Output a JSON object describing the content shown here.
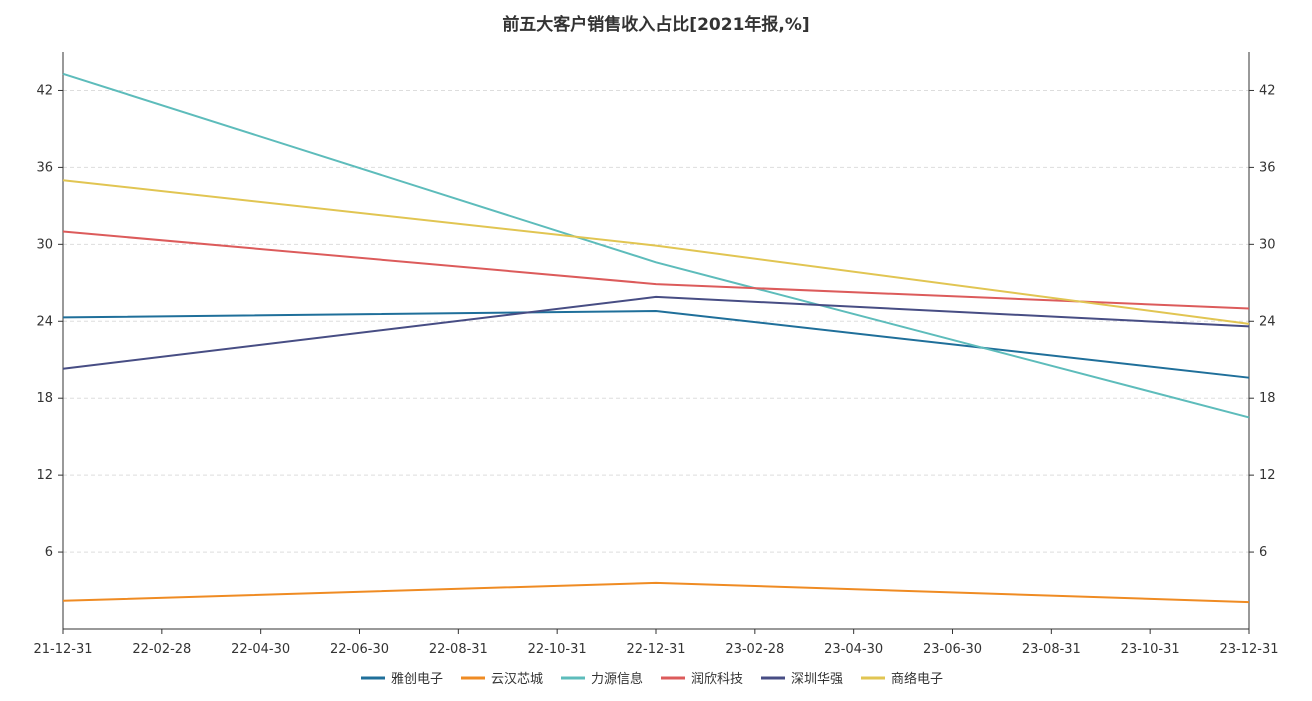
{
  "chart_data": {
    "type": "line",
    "title": "前五大客户销售收入占比[2021年报,%]",
    "x_tick_labels": [
      "21-12-31",
      "22-02-28",
      "22-04-30",
      "22-06-30",
      "22-08-31",
      "22-10-31",
      "22-12-31",
      "23-02-28",
      "23-04-30",
      "23-06-30",
      "23-08-31",
      "23-10-31",
      "23-12-31"
    ],
    "x_range": [
      "2021-12-31",
      "2023-12-31"
    ],
    "x": [
      "2021-12-31",
      "2022-12-31",
      "2023-12-31"
    ],
    "y_ticks": [
      6,
      12,
      18,
      24,
      30,
      36,
      42
    ],
    "ylim": [
      0,
      45
    ],
    "grid": true,
    "legend_position": "bottom",
    "series": [
      {
        "name": "雅创电子",
        "color": "#1f6f9a",
        "values": [
          24.3,
          24.8,
          19.6
        ]
      },
      {
        "name": "云汉芯城",
        "color": "#ef8b23",
        "values": [
          2.2,
          3.6,
          2.1
        ]
      },
      {
        "name": "力源信息",
        "color": "#5dbcbb",
        "values": [
          43.3,
          28.6,
          16.5
        ]
      },
      {
        "name": "润欣科技",
        "color": "#dc5b5b",
        "values": [
          31.0,
          26.9,
          25.0
        ]
      },
      {
        "name": "深圳华强",
        "color": "#474d84",
        "values": [
          20.3,
          25.9,
          23.6
        ]
      },
      {
        "name": "商络电子",
        "color": "#e1c552",
        "values": [
          35.0,
          29.9,
          23.8
        ]
      }
    ]
  }
}
